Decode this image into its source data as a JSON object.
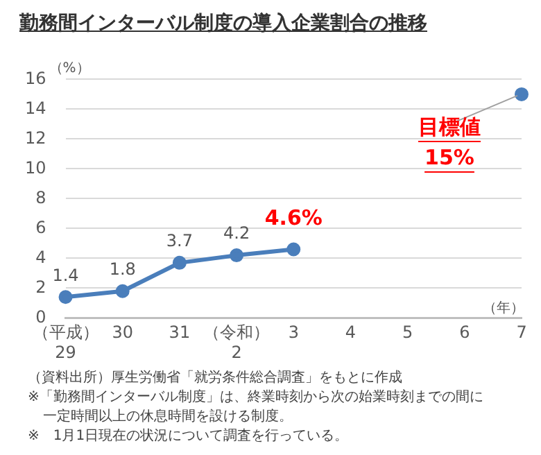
{
  "chart_data": {
    "type": "line",
    "title": "勤務間インターバル制度の導入企業割合の推移",
    "ylabel": "（%）",
    "xlabel": "（年）",
    "categories": [
      "（平成）\n29",
      "30",
      "31",
      "（令和）\n2",
      "3",
      "4",
      "5",
      "6",
      "7"
    ],
    "series": [
      {
        "color": "#4a7ebb",
        "values": [
          1.4,
          1.8,
          3.7,
          4.2,
          4.6,
          null,
          null,
          null,
          null
        ],
        "value_labels": [
          "1.4",
          "1.8",
          "3.7",
          "4.2",
          null,
          null,
          null,
          null,
          null
        ]
      },
      {
        "color": "#4a7ebb",
        "values": [
          null,
          null,
          null,
          null,
          null,
          null,
          null,
          null,
          15
        ]
      }
    ],
    "ylim": [
      0,
      16
    ],
    "yticks": [
      0,
      2,
      4,
      6,
      8,
      10,
      12,
      14,
      16
    ],
    "grid": "y",
    "marker": "circle",
    "legend": false,
    "annotations": [
      {
        "text": "4.6%",
        "x": "3",
        "y": 4.6
      },
      {
        "text": "目標値\n15%",
        "x": "7",
        "y": 15
      },
      "（資料出所）厚生労働省「就労条件総合調査」をもとに作成",
      "※「勤務間インターバル制度」は、終業時刻から次の始業時刻までの間に一定時間以上の休息時間を設ける制度。",
      "※　1月1日現在の状況について調査を行っている。"
    ]
  }
}
